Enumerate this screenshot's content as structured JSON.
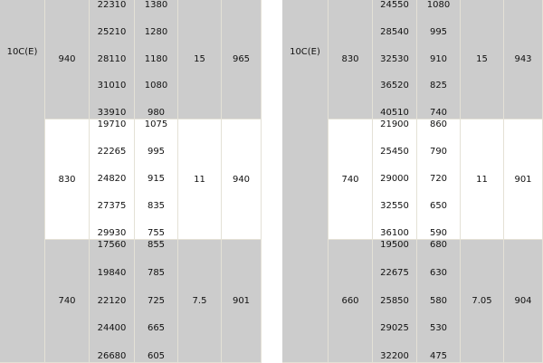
{
  "tables": [
    {
      "model": "10C(E)",
      "groups": [
        {
          "shade": "gray",
          "value": "940",
          "col_a": [
            "22310",
            "25210",
            "28110",
            "31010",
            "33910"
          ],
          "col_b": [
            "1380",
            "1280",
            "1180",
            "1080",
            "980"
          ],
          "col_c": "15",
          "col_d": "965"
        },
        {
          "shade": "white",
          "value": "830",
          "col_a": [
            "19710",
            "22265",
            "24820",
            "27375",
            "29930"
          ],
          "col_b": [
            "1075",
            "995",
            "915",
            "835",
            "755"
          ],
          "col_c": "11",
          "col_d": "940"
        },
        {
          "shade": "gray",
          "value": "740",
          "col_a": [
            "17560",
            "19840",
            "22120",
            "24400",
            "26680"
          ],
          "col_b": [
            "855",
            "785",
            "725",
            "665",
            "605"
          ],
          "col_c": "7.5",
          "col_d": "901"
        }
      ]
    },
    {
      "model": "10C(E)",
      "groups": [
        {
          "shade": "gray",
          "value": "830",
          "col_a": [
            "24550",
            "28540",
            "32530",
            "36520",
            "40510"
          ],
          "col_b": [
            "1080",
            "995",
            "910",
            "825",
            "740"
          ],
          "col_c": "15",
          "col_d": "943"
        },
        {
          "shade": "white",
          "value": "740",
          "col_a": [
            "21900",
            "25450",
            "29000",
            "32550",
            "36100"
          ],
          "col_b": [
            "860",
            "790",
            "720",
            "650",
            "590"
          ],
          "col_c": "11",
          "col_d": "901"
        },
        {
          "shade": "gray",
          "value": "660",
          "col_a": [
            "19500",
            "22675",
            "25850",
            "29025",
            "32200"
          ],
          "col_b": [
            "680",
            "630",
            "580",
            "530",
            "475"
          ],
          "col_c": "7.05",
          "col_d": "904"
        }
      ]
    }
  ]
}
